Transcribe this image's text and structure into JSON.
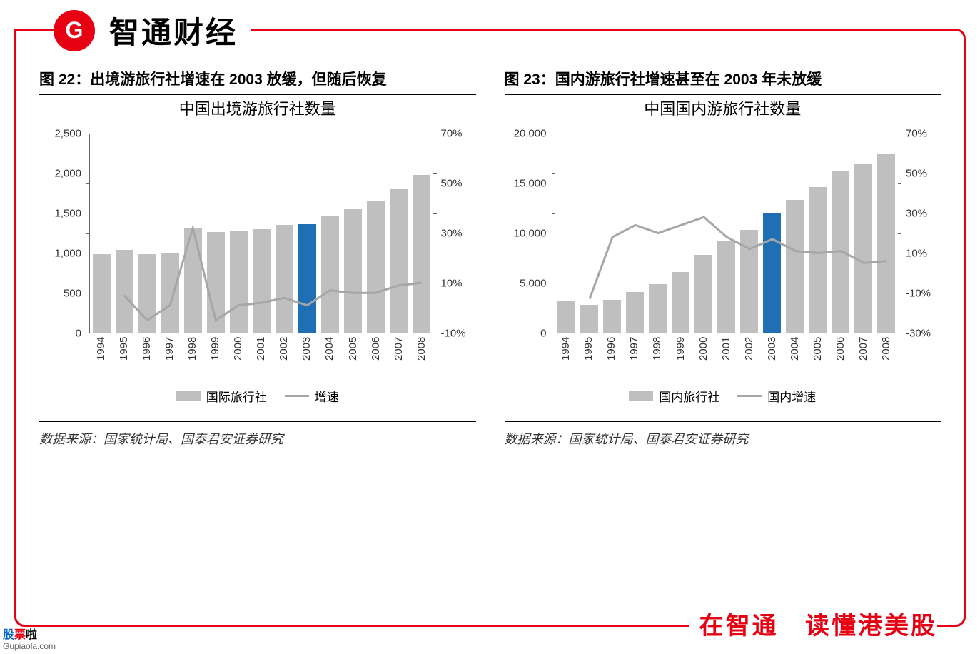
{
  "header": {
    "logo_text": "G",
    "title": "智通财经"
  },
  "footer": {
    "part1": "在智通",
    "part2": "读懂港美股"
  },
  "watermark": {
    "l1_a": "股",
    "l1_b": "票",
    "l1_c": "啦",
    "l2": "Gupiaola.com"
  },
  "chart_left": {
    "panel_title": "图 22：出境游旅行社增速在 2003 放缓，但随后恢复",
    "subtitle": "中国出境游旅行社数量",
    "type": "bar+line",
    "x_labels": [
      "1994",
      "1995",
      "1996",
      "1997",
      "1998",
      "1999",
      "2000",
      "2001",
      "2002",
      "2003",
      "2004",
      "2005",
      "2006",
      "2007",
      "2008"
    ],
    "bar_values": [
      990,
      1040,
      990,
      1000,
      1320,
      1260,
      1270,
      1300,
      1350,
      1360,
      1460,
      1550,
      1650,
      1800,
      1980
    ],
    "highlight_index": 9,
    "line_values_pct": [
      null,
      5,
      -5,
      1,
      32,
      -5,
      1,
      2,
      4,
      1,
      7,
      6,
      6,
      9,
      10
    ],
    "y_left": {
      "min": 0,
      "max": 2500,
      "step": 500,
      "ticks": [
        "0",
        "500",
        "1,000",
        "1,500",
        "2,000",
        "2,500"
      ]
    },
    "y_right": {
      "min": -10,
      "max": 70,
      "step": 20,
      "ticks": [
        "-10%",
        "10%",
        "30%",
        "50%",
        "70%"
      ]
    },
    "bar_color": "#bfbfbf",
    "highlight_color": "#1f6fb5",
    "line_color": "#a6a6a6",
    "line_width": 3,
    "legend": {
      "bar_label": "国际旅行社",
      "line_label": "增速"
    },
    "source": "数据来源：国家统计局、国泰君安证券研究"
  },
  "chart_right": {
    "panel_title": "图 23：国内游旅行社增速甚至在 2003 年未放缓",
    "subtitle": "中国国内游旅行社数量",
    "type": "bar+line",
    "x_labels": [
      "1994",
      "1995",
      "1996",
      "1997",
      "1998",
      "1999",
      "2000",
      "2001",
      "2002",
      "2003",
      "2004",
      "2005",
      "2006",
      "2007",
      "2008"
    ],
    "bar_values": [
      3200,
      2800,
      3300,
      4100,
      4900,
      6100,
      7800,
      9200,
      10300,
      12000,
      13300,
      14600,
      16200,
      17000,
      18000
    ],
    "highlight_index": 9,
    "line_values_pct": [
      null,
      -13,
      18,
      24,
      20,
      24,
      28,
      18,
      12,
      17,
      11,
      10,
      11,
      5,
      6
    ],
    "y_left": {
      "min": 0,
      "max": 20000,
      "step": 5000,
      "ticks": [
        "0",
        "5,000",
        "10,000",
        "15,000",
        "20,000"
      ]
    },
    "y_right": {
      "min": -30,
      "max": 70,
      "step": 20,
      "ticks": [
        "-30%",
        "-10%",
        "10%",
        "30%",
        "50%",
        "70%"
      ]
    },
    "bar_color": "#bfbfbf",
    "highlight_color": "#1f6fb5",
    "line_color": "#a6a6a6",
    "line_width": 3,
    "legend": {
      "bar_label": "国内旅行社",
      "line_label": "国内增速"
    },
    "source": "数据来源：国家统计局、国泰君安证券研究"
  }
}
